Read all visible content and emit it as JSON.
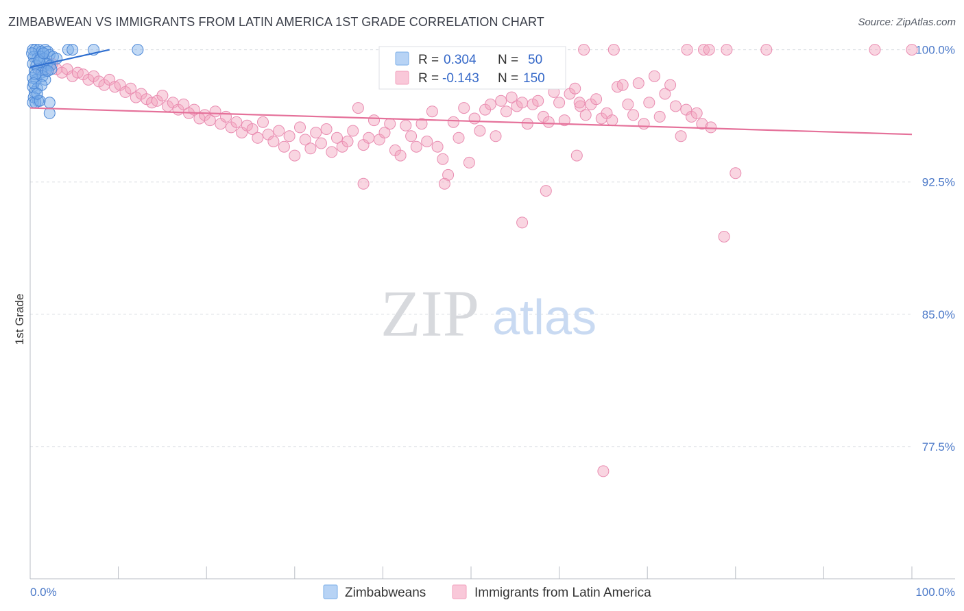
{
  "header": {
    "title": "ZIMBABWEAN VS IMMIGRANTS FROM LATIN AMERICA 1ST GRADE CORRELATION CHART",
    "source": "Source: ZipAtlas.com"
  },
  "watermark": {
    "zip": "ZIP",
    "atlas": "atlas"
  },
  "stats": [
    {
      "r_label": "R =",
      "r_value": "0.304",
      "n_label": "N =",
      "n_value": "50",
      "color": "#7aaee8"
    },
    {
      "r_label": "R =",
      "r_value": "-0.143",
      "n_label": "N =",
      "n_value": "150",
      "color": "#f2a1bd"
    }
  ],
  "chart_data": {
    "type": "scatter",
    "title": "ZIMBABWEAN VS IMMIGRANTS FROM LATIN AMERICA 1ST GRADE CORRELATION CHART",
    "xlabel": "",
    "ylabel": "1st Grade",
    "xlim": [
      0,
      100
    ],
    "ylim": [
      70,
      100.8
    ],
    "x_tick_labels": [
      "0.0%",
      "100.0%"
    ],
    "y_ticks": [
      {
        "value": 100.0,
        "label": "100.0%"
      },
      {
        "value": 92.5,
        "label": "92.5%"
      },
      {
        "value": 85.0,
        "label": "85.0%"
      },
      {
        "value": 77.5,
        "label": "77.5%"
      }
    ],
    "grid": true,
    "legend_position": "bottom-center",
    "series": [
      {
        "name": "Zimbabweans",
        "color": "#7aaee8",
        "stroke": "#4a86d6",
        "trend": {
          "x": [
            0,
            9
          ],
          "y": [
            99.0,
            100.0
          ],
          "color": "#2f6fd0"
        },
        "points": [
          [
            0.3,
            100
          ],
          [
            0.6,
            100
          ],
          [
            1.0,
            100
          ],
          [
            1.3,
            99.9
          ],
          [
            1.7,
            100
          ],
          [
            2.0,
            99.9
          ],
          [
            0.4,
            99.6
          ],
          [
            0.8,
            99.5
          ],
          [
            1.2,
            99.6
          ],
          [
            1.6,
            99.5
          ],
          [
            2.2,
            99.7
          ],
          [
            2.6,
            99.6
          ],
          [
            0.3,
            99.2
          ],
          [
            0.7,
            99.1
          ],
          [
            1.1,
            99.3
          ],
          [
            1.5,
            99.0
          ],
          [
            1.9,
            99.2
          ],
          [
            2.3,
            99.1
          ],
          [
            0.5,
            98.8
          ],
          [
            0.9,
            98.9
          ],
          [
            1.3,
            98.7
          ],
          [
            1.8,
            98.8
          ],
          [
            2.4,
            98.9
          ],
          [
            0.3,
            98.4
          ],
          [
            0.7,
            98.3
          ],
          [
            1.4,
            98.5
          ],
          [
            0.3,
            97.9
          ],
          [
            0.5,
            97.6
          ],
          [
            0.8,
            97.8
          ],
          [
            0.4,
            97.3
          ],
          [
            0.9,
            97.1
          ],
          [
            0.3,
            97.0
          ],
          [
            0.6,
            97.0
          ],
          [
            1.1,
            97.1
          ],
          [
            2.2,
            97.0
          ],
          [
            2.2,
            96.4
          ],
          [
            4.3,
            100
          ],
          [
            4.8,
            100
          ],
          [
            7.2,
            100
          ],
          [
            12.2,
            100
          ],
          [
            0.2,
            99.8
          ],
          [
            1.0,
            99.4
          ],
          [
            3.0,
            99.5
          ],
          [
            0.6,
            98.6
          ],
          [
            1.7,
            98.3
          ],
          [
            0.4,
            98.1
          ],
          [
            2.0,
            98.8
          ],
          [
            1.3,
            98.0
          ],
          [
            0.8,
            97.5
          ],
          [
            1.5,
            99.8
          ]
        ]
      },
      {
        "name": "Immigrants from Latin America",
        "color": "#f2a1bd",
        "stroke": "#e98bb0",
        "trend": {
          "x": [
            0,
            100
          ],
          "y": [
            96.7,
            95.2
          ],
          "color": "#e5719a"
        },
        "points": [
          [
            1.0,
            99.0
          ],
          [
            1.8,
            98.8
          ],
          [
            2.5,
            99.2
          ],
          [
            3.0,
            98.9
          ],
          [
            3.6,
            98.7
          ],
          [
            4.2,
            98.9
          ],
          [
            4.8,
            98.5
          ],
          [
            5.4,
            98.7
          ],
          [
            6.0,
            98.6
          ],
          [
            6.6,
            98.3
          ],
          [
            7.2,
            98.5
          ],
          [
            7.8,
            98.2
          ],
          [
            8.4,
            98.0
          ],
          [
            9.0,
            98.3
          ],
          [
            9.6,
            97.9
          ],
          [
            10.2,
            98.0
          ],
          [
            10.8,
            97.6
          ],
          [
            11.4,
            97.8
          ],
          [
            12.0,
            97.3
          ],
          [
            12.6,
            97.5
          ],
          [
            13.2,
            97.2
          ],
          [
            13.8,
            97.0
          ],
          [
            14.4,
            97.1
          ],
          [
            15.0,
            97.4
          ],
          [
            15.6,
            96.8
          ],
          [
            16.2,
            97.0
          ],
          [
            16.8,
            96.6
          ],
          [
            17.4,
            96.9
          ],
          [
            18.0,
            96.4
          ],
          [
            18.6,
            96.6
          ],
          [
            19.2,
            96.1
          ],
          [
            19.8,
            96.3
          ],
          [
            20.4,
            96.0
          ],
          [
            21.0,
            96.5
          ],
          [
            21.6,
            95.8
          ],
          [
            22.2,
            96.2
          ],
          [
            22.8,
            95.6
          ],
          [
            23.4,
            95.9
          ],
          [
            24.0,
            95.3
          ],
          [
            24.6,
            95.7
          ],
          [
            25.2,
            95.5
          ],
          [
            25.8,
            95.0
          ],
          [
            26.4,
            95.9
          ],
          [
            27.0,
            95.2
          ],
          [
            27.6,
            94.8
          ],
          [
            28.2,
            95.4
          ],
          [
            28.8,
            94.5
          ],
          [
            29.4,
            95.1
          ],
          [
            30.0,
            94.0
          ],
          [
            30.6,
            95.6
          ],
          [
            31.2,
            94.9
          ],
          [
            31.8,
            94.4
          ],
          [
            32.4,
            95.3
          ],
          [
            33.0,
            94.7
          ],
          [
            33.6,
            95.5
          ],
          [
            34.2,
            94.2
          ],
          [
            34.8,
            95.0
          ],
          [
            35.4,
            94.5
          ],
          [
            36.0,
            94.8
          ],
          [
            36.6,
            95.4
          ],
          [
            37.2,
            96.7
          ],
          [
            37.8,
            94.6
          ],
          [
            38.4,
            95.0
          ],
          [
            39.0,
            96.0
          ],
          [
            39.6,
            94.9
          ],
          [
            40.2,
            95.3
          ],
          [
            40.8,
            95.8
          ],
          [
            41.4,
            94.3
          ],
          [
            42.0,
            94.0
          ],
          [
            42.6,
            95.7
          ],
          [
            43.2,
            95.1
          ],
          [
            43.8,
            94.5
          ],
          [
            44.4,
            95.8
          ],
          [
            45.0,
            94.8
          ],
          [
            45.6,
            96.5
          ],
          [
            46.2,
            94.5
          ],
          [
            46.8,
            93.8
          ],
          [
            47.4,
            92.9
          ],
          [
            48.0,
            95.9
          ],
          [
            48.6,
            95.0
          ],
          [
            49.2,
            96.7
          ],
          [
            49.8,
            93.6
          ],
          [
            50.4,
            96.1
          ],
          [
            51.0,
            95.4
          ],
          [
            51.6,
            96.6
          ],
          [
            52.2,
            96.9
          ],
          [
            52.8,
            95.1
          ],
          [
            53.4,
            97.1
          ],
          [
            54.0,
            96.5
          ],
          [
            54.6,
            97.3
          ],
          [
            55.2,
            96.8
          ],
          [
            55.8,
            97.0
          ],
          [
            56.4,
            95.8
          ],
          [
            57.0,
            96.9
          ],
          [
            57.6,
            97.1
          ],
          [
            58.2,
            96.2
          ],
          [
            58.8,
            95.9
          ],
          [
            59.4,
            97.6
          ],
          [
            60.0,
            97.0
          ],
          [
            60.6,
            96.0
          ],
          [
            61.2,
            97.5
          ],
          [
            61.8,
            97.8
          ],
          [
            62.4,
            96.8
          ],
          [
            63.0,
            96.3
          ],
          [
            63.6,
            96.9
          ],
          [
            64.2,
            97.2
          ],
          [
            64.8,
            96.1
          ],
          [
            65.4,
            96.4
          ],
          [
            66.0,
            96.0
          ],
          [
            66.6,
            97.9
          ],
          [
            67.2,
            98.0
          ],
          [
            67.8,
            96.9
          ],
          [
            68.4,
            96.3
          ],
          [
            69.0,
            98.1
          ],
          [
            69.6,
            95.8
          ],
          [
            70.2,
            97.0
          ],
          [
            70.8,
            98.5
          ],
          [
            71.4,
            96.2
          ],
          [
            72.0,
            97.5
          ],
          [
            72.6,
            98.0
          ],
          [
            73.2,
            96.8
          ],
          [
            73.8,
            95.1
          ],
          [
            74.4,
            96.6
          ],
          [
            75.0,
            96.2
          ],
          [
            75.6,
            96.4
          ],
          [
            76.2,
            95.8
          ],
          [
            77.2,
            95.6
          ],
          [
            80.0,
            93.0
          ],
          [
            47.0,
            92.4
          ],
          [
            37.8,
            92.4
          ],
          [
            55.8,
            90.2
          ],
          [
            58.5,
            92.0
          ],
          [
            62.0,
            94.0
          ],
          [
            78.7,
            89.4
          ],
          [
            65.0,
            76.1
          ],
          [
            62.8,
            100
          ],
          [
            66.2,
            100
          ],
          [
            76.4,
            100
          ],
          [
            77.0,
            100
          ],
          [
            79.0,
            100
          ],
          [
            83.5,
            100
          ],
          [
            95.8,
            100
          ],
          [
            100.0,
            100
          ],
          [
            49.1,
            98.1
          ],
          [
            53.6,
            98.6
          ],
          [
            62.3,
            97.0
          ],
          [
            74.5,
            100
          ]
        ]
      }
    ]
  }
}
